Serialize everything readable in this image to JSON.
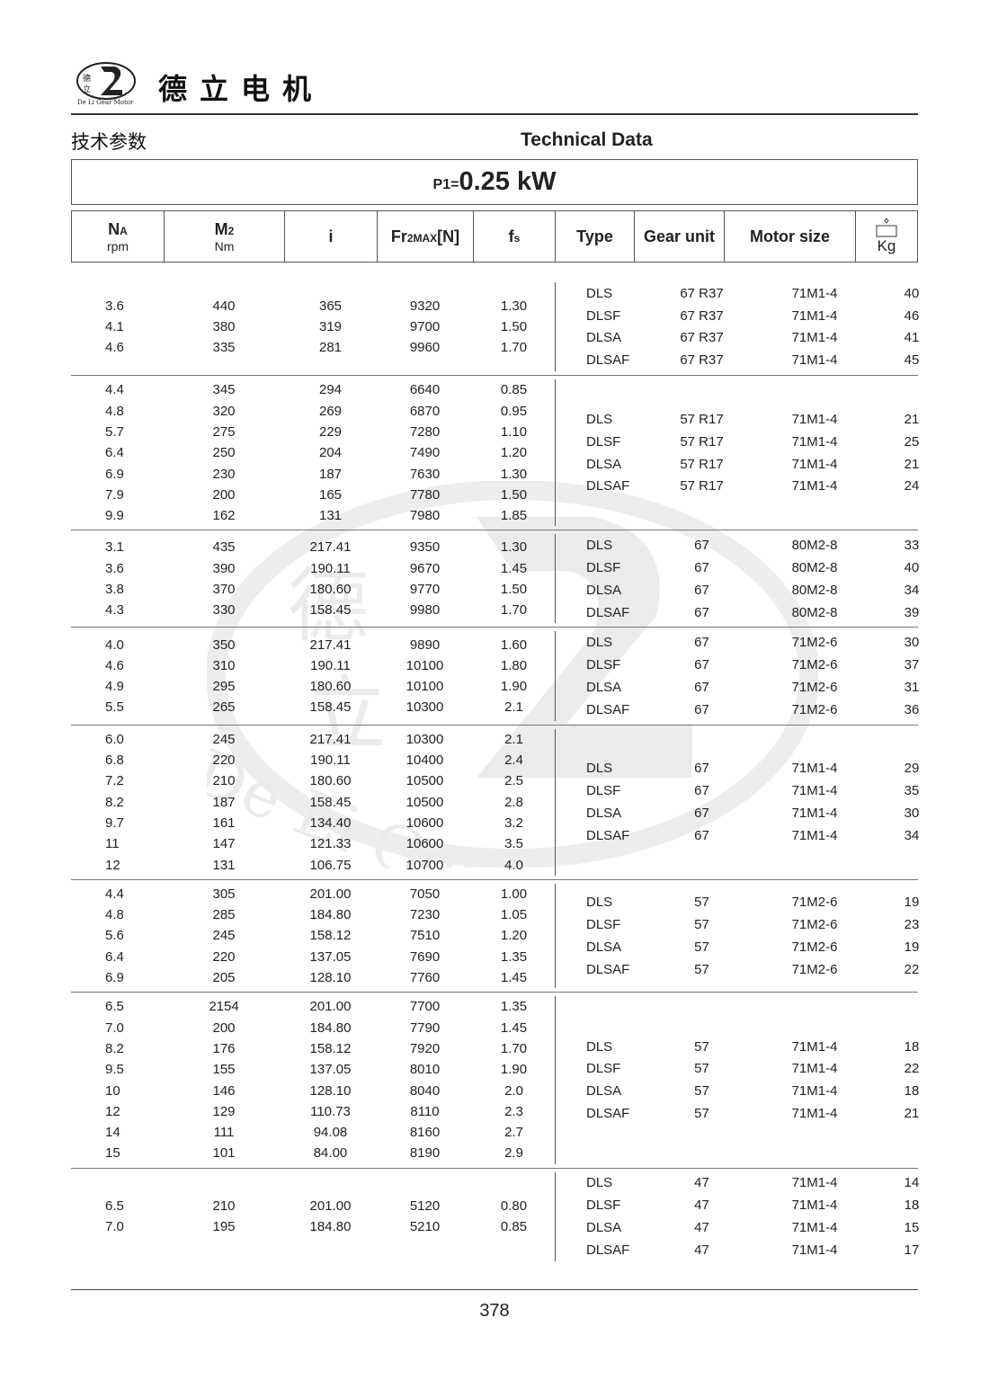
{
  "brand": {
    "name_cn": "德立电机",
    "logo_text": "De Li Gear Motor",
    "logo_chars": "德立"
  },
  "titles": {
    "cn": "技术参数",
    "en": "Technical Data"
  },
  "power": {
    "prefix": "P1=",
    "value": "0.25 kW"
  },
  "columns": {
    "na": {
      "main": "N",
      "sub_script": "A",
      "unit": "rpm"
    },
    "m2": {
      "main": "M",
      "sub_script": "2",
      "unit": "Nm"
    },
    "i": "i",
    "fr": {
      "main": "Fr",
      "sub_script": "2MAX",
      "tail": "[N]"
    },
    "fs": {
      "main": "f",
      "sub_script": "s"
    },
    "type": "Type",
    "gear": "Gear unit",
    "motor": "Motor size",
    "kg": {
      "icon": "weight-icon",
      "unit": "Kg"
    }
  },
  "groups": [
    {
      "left": [
        [
          "3.6",
          "440",
          "365",
          "9320",
          "1.30"
        ],
        [
          "4.1",
          "380",
          "319",
          "9700",
          "1.50"
        ],
        [
          "4.6",
          "335",
          "281",
          "9960",
          "1.70"
        ]
      ],
      "right": [
        [
          "DLS",
          "67 R37",
          "71M1-4",
          "40"
        ],
        [
          "DLSF",
          "67 R37",
          "71M1-4",
          "46"
        ],
        [
          "DLSA",
          "67 R37",
          "71M1-4",
          "41"
        ],
        [
          "DLSAF",
          "67 R37",
          "71M1-4",
          "45"
        ]
      ]
    },
    {
      "left": [
        [
          "4.4",
          "345",
          "294",
          "6640",
          "0.85"
        ],
        [
          "4.8",
          "320",
          "269",
          "6870",
          "0.95"
        ],
        [
          "5.7",
          "275",
          "229",
          "7280",
          "1.10"
        ],
        [
          "6.4",
          "250",
          "204",
          "7490",
          "1.20"
        ],
        [
          "6.9",
          "230",
          "187",
          "7630",
          "1.30"
        ],
        [
          "7.9",
          "200",
          "165",
          "7780",
          "1.50"
        ],
        [
          "9.9",
          "162",
          "131",
          "7980",
          "1.85"
        ]
      ],
      "right": [
        [
          "DLS",
          "57 R17",
          "71M1-4",
          "21"
        ],
        [
          "DLSF",
          "57 R17",
          "71M1-4",
          "25"
        ],
        [
          "DLSA",
          "57 R17",
          "71M1-4",
          "21"
        ],
        [
          "DLSAF",
          "57 R17",
          "71M1-4",
          "24"
        ]
      ]
    },
    {
      "left": [
        [
          "3.1",
          "435",
          "217.41",
          "9350",
          "1.30"
        ],
        [
          "3.6",
          "390",
          "190.11",
          "9670",
          "1.45"
        ],
        [
          "3.8",
          "370",
          "180.60",
          "9770",
          "1.50"
        ],
        [
          "4.3",
          "330",
          "158.45",
          "9980",
          "1.70"
        ]
      ],
      "right": [
        [
          "DLS",
          "67",
          "80M2-8",
          "33"
        ],
        [
          "DLSF",
          "67",
          "80M2-8",
          "40"
        ],
        [
          "DLSA",
          "67",
          "80M2-8",
          "34"
        ],
        [
          "DLSAF",
          "67",
          "80M2-8",
          "39"
        ]
      ]
    },
    {
      "left": [
        [
          "4.0",
          "350",
          "217.41",
          "9890",
          "1.60"
        ],
        [
          "4.6",
          "310",
          "190.11",
          "10100",
          "1.80"
        ],
        [
          "4.9",
          "295",
          "180.60",
          "10100",
          "1.90"
        ],
        [
          "5.5",
          "265",
          "158.45",
          "10300",
          "2.1"
        ]
      ],
      "right": [
        [
          "DLS",
          "67",
          "71M2-6",
          "30"
        ],
        [
          "DLSF",
          "67",
          "71M2-6",
          "37"
        ],
        [
          "DLSA",
          "67",
          "71M2-6",
          "31"
        ],
        [
          "DLSAF",
          "67",
          "71M2-6",
          "36"
        ]
      ]
    },
    {
      "left": [
        [
          "6.0",
          "245",
          "217.41",
          "10300",
          "2.1"
        ],
        [
          "6.8",
          "220",
          "190.11",
          "10400",
          "2.4"
        ],
        [
          "7.2",
          "210",
          "180.60",
          "10500",
          "2.5"
        ],
        [
          "8.2",
          "187",
          "158.45",
          "10500",
          "2.8"
        ],
        [
          "9.7",
          "161",
          "134.40",
          "10600",
          "3.2"
        ],
        [
          "11",
          "147",
          "121.33",
          "10600",
          "3.5"
        ],
        [
          "12",
          "131",
          "106.75",
          "10700",
          "4.0"
        ]
      ],
      "right": [
        [
          "DLS",
          "67",
          "71M1-4",
          "29"
        ],
        [
          "DLSF",
          "67",
          "71M1-4",
          "35"
        ],
        [
          "DLSA",
          "67",
          "71M1-4",
          "30"
        ],
        [
          "DLSAF",
          "67",
          "71M1-4",
          "34"
        ]
      ]
    },
    {
      "left": [
        [
          "4.4",
          "305",
          "201.00",
          "7050",
          "1.00"
        ],
        [
          "4.8",
          "285",
          "184.80",
          "7230",
          "1.05"
        ],
        [
          "5.6",
          "245",
          "158.12",
          "7510",
          "1.20"
        ],
        [
          "6.4",
          "220",
          "137.05",
          "7690",
          "1.35"
        ],
        [
          "6.9",
          "205",
          "128.10",
          "7760",
          "1.45"
        ]
      ],
      "right": [
        [
          "DLS",
          "57",
          "71M2-6",
          "19"
        ],
        [
          "DLSF",
          "57",
          "71M2-6",
          "23"
        ],
        [
          "DLSA",
          "57",
          "71M2-6",
          "19"
        ],
        [
          "DLSAF",
          "57",
          "71M2-6",
          "22"
        ]
      ]
    },
    {
      "left": [
        [
          "6.5",
          "2154",
          "201.00",
          "7700",
          "1.35"
        ],
        [
          "7.0",
          "200",
          "184.80",
          "7790",
          "1.45"
        ],
        [
          "8.2",
          "176",
          "158.12",
          "7920",
          "1.70"
        ],
        [
          "9.5",
          "155",
          "137.05",
          "8010",
          "1.90"
        ],
        [
          "10",
          "146",
          "128.10",
          "8040",
          "2.0"
        ],
        [
          "12",
          "129",
          "110.73",
          "8110",
          "2.3"
        ],
        [
          "14",
          "111",
          "94.08",
          "8160",
          "2.7"
        ],
        [
          "15",
          "101",
          "84.00",
          "8190",
          "2.9"
        ]
      ],
      "right": [
        [
          "DLS",
          "57",
          "71M1-4",
          "18"
        ],
        [
          "DLSF",
          "57",
          "71M1-4",
          "22"
        ],
        [
          "DLSA",
          "57",
          "71M1-4",
          "18"
        ],
        [
          "DLSAF",
          "57",
          "71M1-4",
          "21"
        ]
      ]
    },
    {
      "left": [
        [
          "6.5",
          "210",
          "201.00",
          "5120",
          "0.80"
        ],
        [
          "7.0",
          "195",
          "184.80",
          "5210",
          "0.85"
        ]
      ],
      "right": [
        [
          "DLS",
          "47",
          "71M1-4",
          "14"
        ],
        [
          "DLSF",
          "47",
          "71M1-4",
          "18"
        ],
        [
          "DLSA",
          "47",
          "71M1-4",
          "15"
        ],
        [
          "DLSAF",
          "47",
          "71M1-4",
          "17"
        ]
      ]
    }
  ],
  "page_number": "378",
  "colors": {
    "text": "#222222",
    "rule": "#555555",
    "watermark": "#999999"
  }
}
